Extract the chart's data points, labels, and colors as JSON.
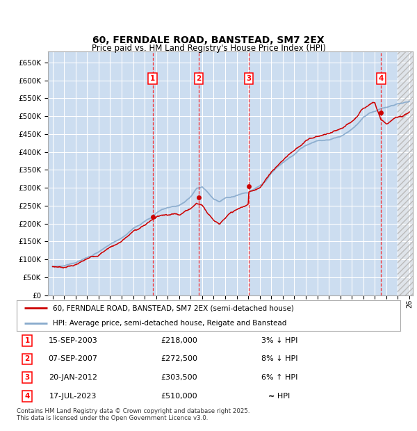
{
  "title": "60, FERNDALE ROAD, BANSTEAD, SM7 2EX",
  "subtitle": "Price paid vs. HM Land Registry's House Price Index (HPI)",
  "footer": "Contains HM Land Registry data © Crown copyright and database right 2025.\nThis data is licensed under the Open Government Licence v3.0.",
  "legend_line1": "60, FERNDALE ROAD, BANSTEAD, SM7 2EX (semi-detached house)",
  "legend_line2": "HPI: Average price, semi-detached house, Reigate and Banstead",
  "sale_events": [
    {
      "num": 1,
      "date": "15-SEP-2003",
      "price": "£218,000",
      "hpi": "3% ↓ HPI",
      "x_year": 2003.7
    },
    {
      "num": 2,
      "date": "07-SEP-2007",
      "price": "£272,500",
      "hpi": "8% ↓ HPI",
      "x_year": 2007.7
    },
    {
      "num": 3,
      "date": "20-JAN-2012",
      "price": "£303,500",
      "hpi": "6% ↑ HPI",
      "x_year": 2012.05
    },
    {
      "num": 4,
      "date": "17-JUL-2023",
      "price": "£510,000",
      "hpi": "≈ HPI",
      "x_year": 2023.55
    }
  ],
  "sale_prices": [
    218000,
    272500,
    303500,
    510000
  ],
  "ylim": [
    0,
    680000
  ],
  "yticks": [
    0,
    50000,
    100000,
    150000,
    200000,
    250000,
    300000,
    350000,
    400000,
    450000,
    500000,
    550000,
    600000,
    650000
  ],
  "xlim_start": 1994.6,
  "xlim_end": 2026.3,
  "bg_color": "#ccddf0",
  "fig_bg_color": "#ffffff",
  "grid_color": "#ffffff",
  "line_color_red": "#cc0000",
  "line_color_blue": "#88aacc",
  "hpi_anchors": [
    [
      1995.0,
      80000
    ],
    [
      1996.0,
      82000
    ],
    [
      1997.0,
      89000
    ],
    [
      1998.0,
      103000
    ],
    [
      1999.0,
      118000
    ],
    [
      2000.0,
      140000
    ],
    [
      2001.0,
      158000
    ],
    [
      2002.0,
      185000
    ],
    [
      2003.0,
      205000
    ],
    [
      2003.7,
      218000
    ],
    [
      2004.0,
      228000
    ],
    [
      2004.5,
      238000
    ],
    [
      2005.0,
      242000
    ],
    [
      2005.5,
      245000
    ],
    [
      2006.0,
      248000
    ],
    [
      2006.5,
      258000
    ],
    [
      2007.0,
      272000
    ],
    [
      2007.5,
      295000
    ],
    [
      2008.0,
      300000
    ],
    [
      2008.5,
      285000
    ],
    [
      2009.0,
      265000
    ],
    [
      2009.5,
      258000
    ],
    [
      2010.0,
      268000
    ],
    [
      2010.5,
      272000
    ],
    [
      2011.0,
      278000
    ],
    [
      2011.5,
      283000
    ],
    [
      2012.0,
      285000
    ],
    [
      2012.5,
      295000
    ],
    [
      2013.0,
      305000
    ],
    [
      2013.5,
      318000
    ],
    [
      2014.0,
      340000
    ],
    [
      2014.5,
      358000
    ],
    [
      2015.0,
      370000
    ],
    [
      2015.5,
      382000
    ],
    [
      2016.0,
      390000
    ],
    [
      2016.5,
      405000
    ],
    [
      2017.0,
      415000
    ],
    [
      2017.5,
      420000
    ],
    [
      2018.0,
      425000
    ],
    [
      2018.5,
      428000
    ],
    [
      2019.0,
      430000
    ],
    [
      2019.5,
      435000
    ],
    [
      2020.0,
      438000
    ],
    [
      2020.5,
      445000
    ],
    [
      2021.0,
      455000
    ],
    [
      2021.5,
      470000
    ],
    [
      2022.0,
      488000
    ],
    [
      2022.5,
      500000
    ],
    [
      2023.0,
      505000
    ],
    [
      2023.5,
      510000
    ],
    [
      2024.0,
      515000
    ],
    [
      2024.5,
      520000
    ],
    [
      2025.0,
      525000
    ],
    [
      2025.5,
      528000
    ],
    [
      2026.0,
      530000
    ]
  ],
  "red_anchors": [
    [
      1995.0,
      80000
    ],
    [
      1996.0,
      80000
    ],
    [
      1997.0,
      88000
    ],
    [
      1998.0,
      101000
    ],
    [
      1999.0,
      115000
    ],
    [
      2000.0,
      138000
    ],
    [
      2001.0,
      155000
    ],
    [
      2002.0,
      182000
    ],
    [
      2003.0,
      200000
    ],
    [
      2003.7,
      218000
    ],
    [
      2004.0,
      225000
    ],
    [
      2004.5,
      232000
    ],
    [
      2005.0,
      235000
    ],
    [
      2005.5,
      238000
    ],
    [
      2006.0,
      238000
    ],
    [
      2006.5,
      248000
    ],
    [
      2007.0,
      258000
    ],
    [
      2007.5,
      272500
    ],
    [
      2008.0,
      268000
    ],
    [
      2008.5,
      248000
    ],
    [
      2009.0,
      230000
    ],
    [
      2009.5,
      222000
    ],
    [
      2010.0,
      235000
    ],
    [
      2010.5,
      248000
    ],
    [
      2011.0,
      255000
    ],
    [
      2011.5,
      262000
    ],
    [
      2012.0,
      268000
    ],
    [
      2012.05,
      303500
    ],
    [
      2012.5,
      310000
    ],
    [
      2013.0,
      320000
    ],
    [
      2013.5,
      340000
    ],
    [
      2014.0,
      365000
    ],
    [
      2014.5,
      382000
    ],
    [
      2015.0,
      398000
    ],
    [
      2015.5,
      415000
    ],
    [
      2016.0,
      428000
    ],
    [
      2016.5,
      442000
    ],
    [
      2017.0,
      455000
    ],
    [
      2017.5,
      462000
    ],
    [
      2018.0,
      468000
    ],
    [
      2018.5,
      472000
    ],
    [
      2019.0,
      475000
    ],
    [
      2019.5,
      480000
    ],
    [
      2020.0,
      482000
    ],
    [
      2021.0,
      498000
    ],
    [
      2021.5,
      515000
    ],
    [
      2022.0,
      535000
    ],
    [
      2022.5,
      548000
    ],
    [
      2023.0,
      558000
    ],
    [
      2023.5,
      510000
    ],
    [
      2023.55,
      510000
    ],
    [
      2024.0,
      495000
    ],
    [
      2024.5,
      505000
    ],
    [
      2025.0,
      515000
    ],
    [
      2025.5,
      520000
    ],
    [
      2026.0,
      530000
    ]
  ]
}
